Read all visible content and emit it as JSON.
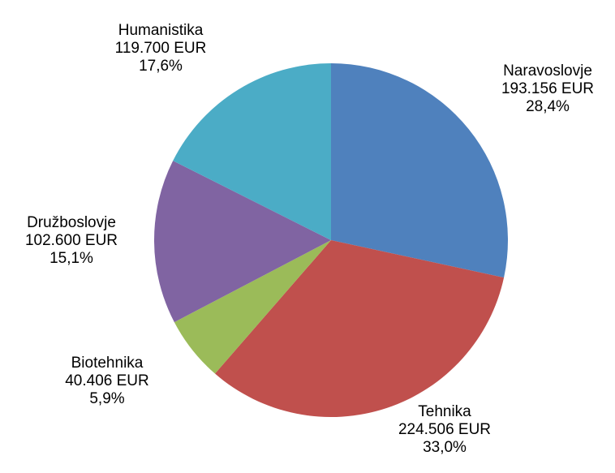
{
  "chart_data": {
    "type": "pie",
    "categories": [
      "Naravoslovje",
      "Tehnika",
      "Biotehnika",
      "Družboslovje",
      "Humanistika"
    ],
    "values": [
      193156,
      224506,
      40406,
      102600,
      119700
    ],
    "value_labels": [
      "193.156 EUR",
      "224.506 EUR",
      "40.406 EUR",
      "102.600 EUR",
      "119.700 EUR"
    ],
    "percent_labels": [
      "28,4%",
      "33,0%",
      "5,9%",
      "15,1%",
      "17,6%"
    ],
    "colors": [
      "#4f81bd",
      "#c0504d",
      "#9bbb59",
      "#8064a2",
      "#4bacc6"
    ]
  }
}
